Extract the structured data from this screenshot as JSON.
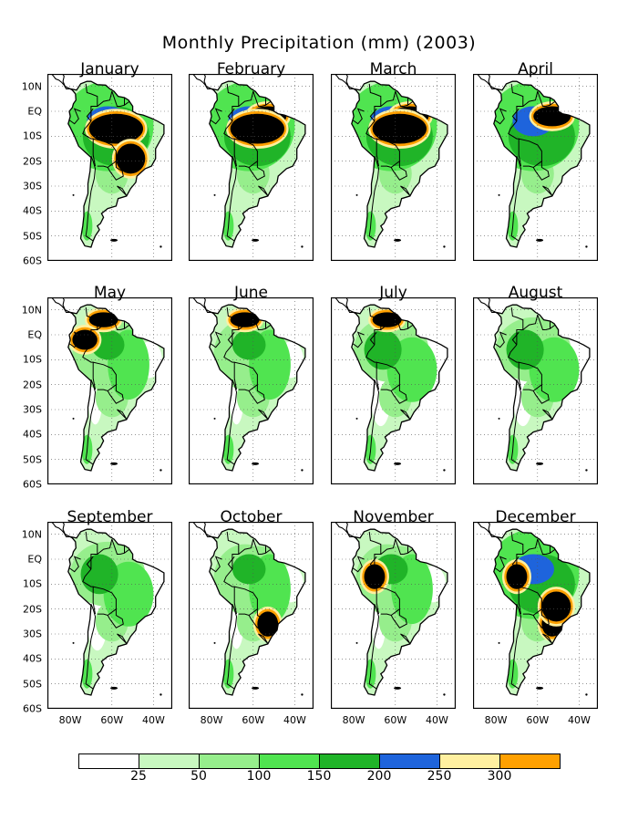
{
  "title": "Monthly Precipitation (mm) (2003)",
  "lat_ticks": [
    "10N",
    "EQ",
    "10S",
    "20S",
    "30S",
    "40S",
    "50S",
    "60S"
  ],
  "lon_ticks": [
    "80W",
    "60W",
    "40W"
  ],
  "colors": {
    "land_outline": "#000000",
    "background": "#ffffff",
    "grid": "#555555"
  },
  "legend": {
    "levels": [
      "25",
      "50",
      "100",
      "150",
      "200",
      "250",
      "300"
    ],
    "colors": [
      "#ffffff",
      "#c8f8c0",
      "#96ee8c",
      "#50e450",
      "#20b428",
      "#1e64dc",
      "#fff0a0",
      "#ffa000"
    ]
  },
  "panels": [
    {
      "month": "January",
      "wet": 2,
      "hot": [
        "amazon_core",
        "south_central"
      ]
    },
    {
      "month": "February",
      "wet": 2,
      "hot": [
        "north_east_amazon",
        "amazon_core"
      ]
    },
    {
      "month": "March",
      "wet": 2,
      "hot": [
        "north_east_amazon",
        "amazon_core"
      ]
    },
    {
      "month": "April",
      "wet": 2,
      "hot": [
        "north_east_amazon"
      ]
    },
    {
      "month": "May",
      "wet": 1,
      "hot": [
        "guiana",
        "north_west"
      ]
    },
    {
      "month": "June",
      "wet": 1,
      "hot": [
        "guiana"
      ]
    },
    {
      "month": "July",
      "wet": 0,
      "hot": [
        "guiana"
      ]
    },
    {
      "month": "August",
      "wet": 0,
      "hot": []
    },
    {
      "month": "September",
      "wet": 0,
      "hot": []
    },
    {
      "month": "October",
      "wet": 1,
      "hot": [
        "south_east"
      ]
    },
    {
      "month": "November",
      "wet": 1,
      "hot": [
        "west_amazon"
      ]
    },
    {
      "month": "December",
      "wet": 2,
      "hot": [
        "west_amazon",
        "south_east",
        "south_central"
      ]
    }
  ]
}
